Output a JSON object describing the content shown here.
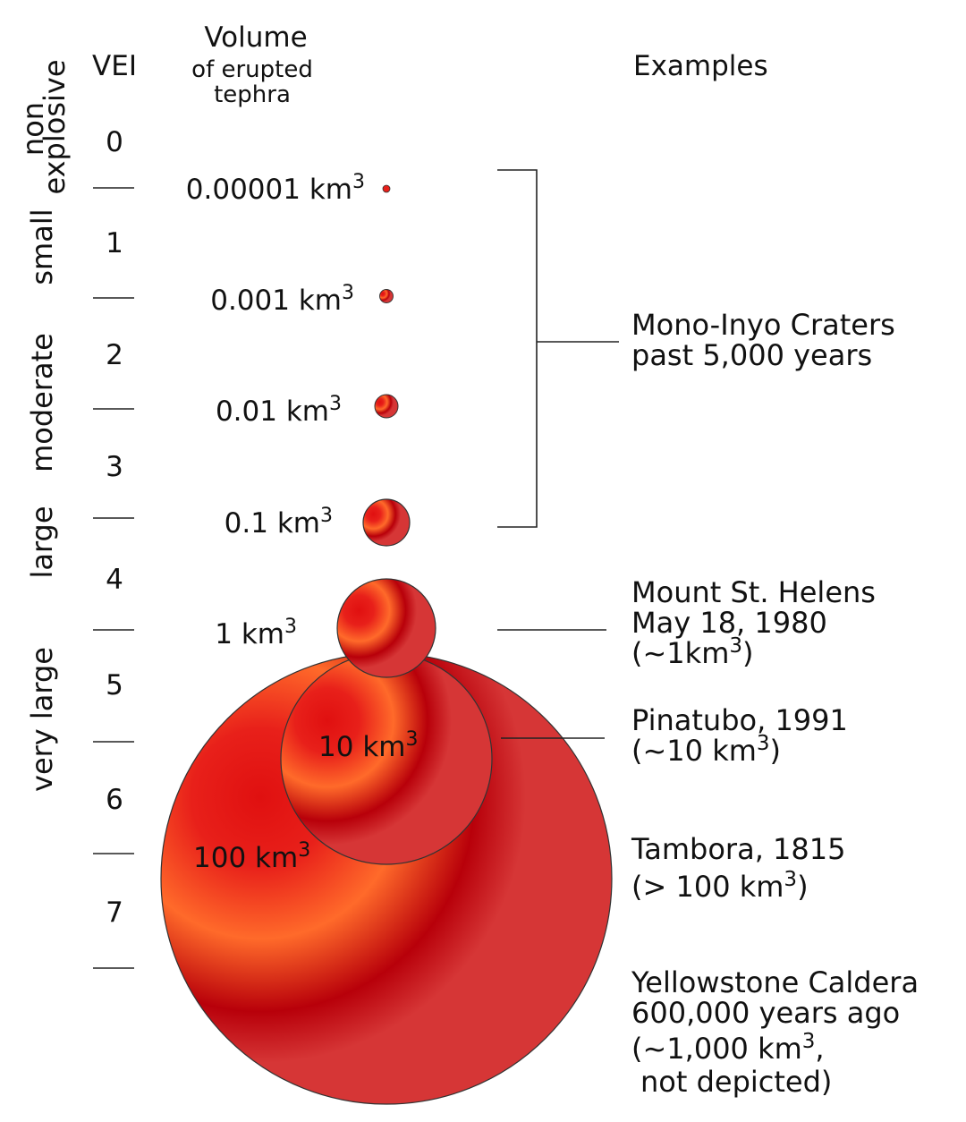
{
  "headers": {
    "vei": "VEI",
    "volume_title": "Volume",
    "volume_subtitle_line1": "of erupted",
    "volume_subtitle_line2": "tephra",
    "examples": "Examples"
  },
  "vei_levels": [
    "0",
    "1",
    "2",
    "3",
    "4",
    "5",
    "6",
    "7"
  ],
  "categories": {
    "non_explosive_line1": "non",
    "non_explosive_line2": "explosive",
    "small": "small",
    "moderate": "moderate",
    "large": "large",
    "very_large": "very large"
  },
  "volumes": [
    {
      "number": "0.00001",
      "unit": "km",
      "exp": "3"
    },
    {
      "number": "0.001",
      "unit": "km",
      "exp": "3"
    },
    {
      "number": "0.01",
      "unit": "km",
      "exp": "3"
    },
    {
      "number": "0.1",
      "unit": "km",
      "exp": "3"
    },
    {
      "number": "1",
      "unit": "km",
      "exp": "3"
    },
    {
      "number": "10",
      "unit": "km",
      "exp": "3"
    },
    {
      "number": "100",
      "unit": "km",
      "exp": "3"
    }
  ],
  "examples": {
    "mono_inyo": {
      "line1": "Mono-Inyo Craters",
      "line2": "past 5,000 years"
    },
    "st_helens": {
      "line1": "Mount St. Helens",
      "line2": "May 18, 1980",
      "line3_pre": "(~1km",
      "line3_exp": "3",
      "line3_post": ")"
    },
    "pinatubo": {
      "line1": "Pinatubo, 1991",
      "line2_pre": "(~10 km",
      "line2_exp": "3",
      "line2_post": ")"
    },
    "tambora": {
      "line1": "Tambora, 1815",
      "line2_pre": "(> 100 km",
      "line2_exp": "3",
      "line2_post": ")"
    },
    "yellowstone": {
      "line1": "Yellowstone Caldera",
      "line2": "600,000 years ago",
      "line3_pre": "(~1,000 km",
      "line3_exp": "3",
      "line3_post": ",",
      "line4": "not depicted)"
    }
  },
  "colors": {
    "sphere_light": "#ff6a2a",
    "sphere_mid": "#e8201a",
    "sphere_dark": "#b8000a",
    "sphere_shade": "#d63636",
    "line": "#222222"
  }
}
